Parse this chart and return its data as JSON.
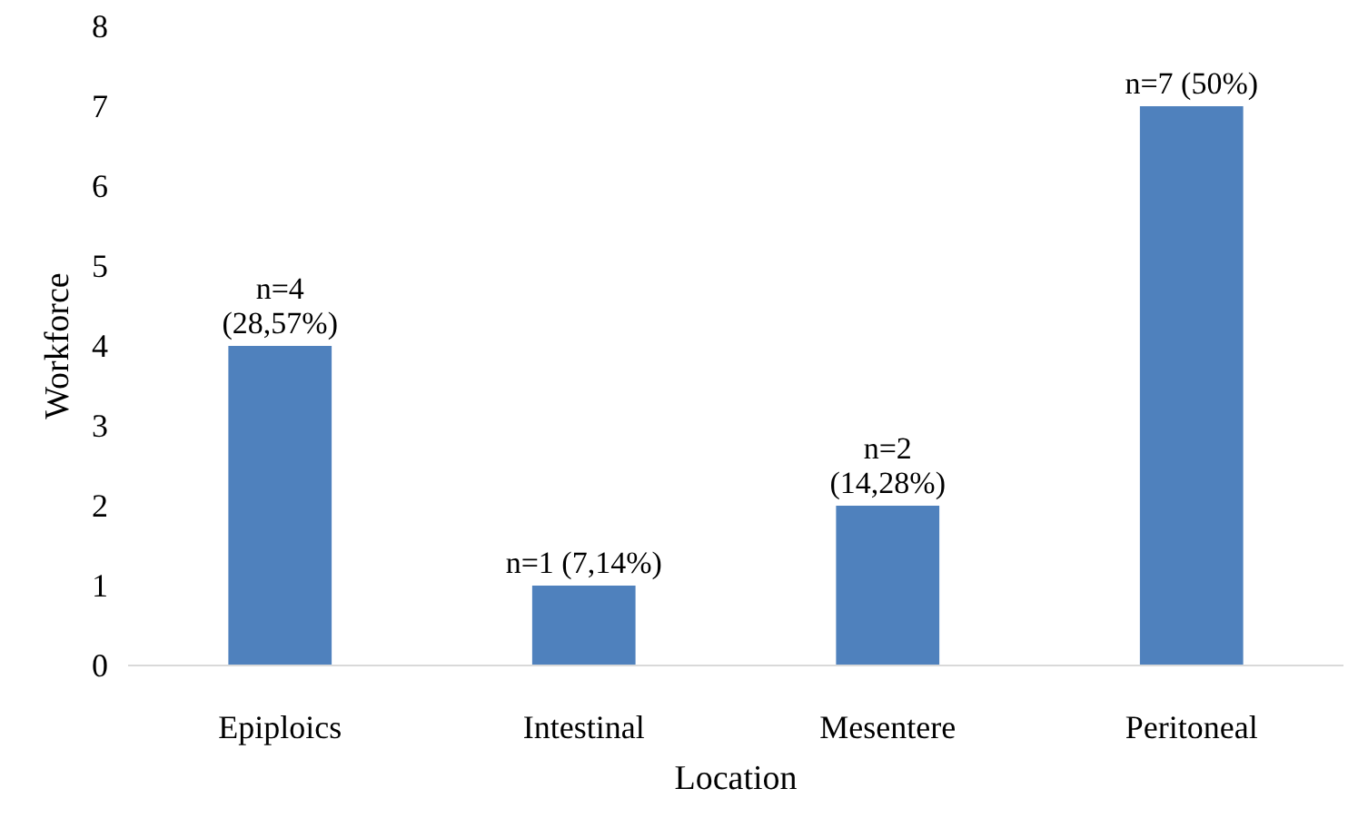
{
  "chart_data": {
    "type": "bar",
    "xlabel": "Location",
    "ylabel": "Workforce",
    "categories": [
      "Epiploics",
      "Intestinal",
      "Mesentere",
      "Peritoneal"
    ],
    "values": [
      4,
      1,
      2,
      7
    ],
    "color": "#4f81bd",
    "value_labels": [
      "n=4\n(28,57%)",
      "n=1 (7,14%)",
      "n=2\n(14,28%)",
      "n=7 (50%)"
    ],
    "ylim": [
      0,
      8
    ],
    "yticks": [
      0,
      1,
      2,
      3,
      4,
      5,
      6,
      7,
      8
    ],
    "grid": false
  }
}
